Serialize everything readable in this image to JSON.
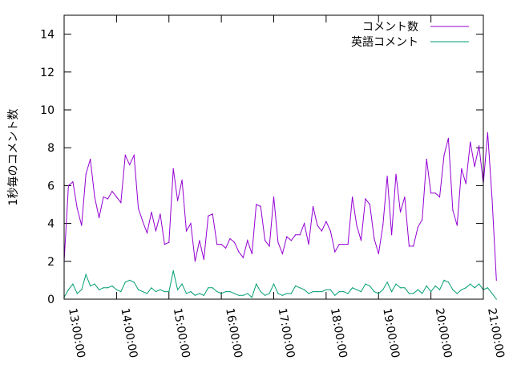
{
  "chart_data": {
    "type": "line",
    "title": "",
    "xlabel": "",
    "ylabel": "1秒毎のコメント数",
    "xlim": [
      "13:00:00",
      "21:00:00"
    ],
    "ylim": [
      0,
      15
    ],
    "x_ticks": [
      "13:00:00",
      "14:00:00",
      "15:00:00",
      "16:00:00",
      "17:00:00",
      "18:00:00",
      "19:00:00",
      "20:00:00",
      "21:00:00"
    ],
    "y_ticks": [
      0,
      2,
      4,
      6,
      8,
      10,
      12,
      14
    ],
    "x_sample_interval_minutes": 5,
    "grid": false,
    "legend_position": "top-right",
    "series": [
      {
        "name": "コメント数",
        "color": "#9400d3",
        "values": [
          2.0,
          6.0,
          6.2,
          4.8,
          3.9,
          6.6,
          7.4,
          5.4,
          4.3,
          5.4,
          5.3,
          5.7,
          5.4,
          5.1,
          7.6,
          7.1,
          7.6,
          4.8,
          4.1,
          3.5,
          4.6,
          3.6,
          4.5,
          2.9,
          3.0,
          6.9,
          5.2,
          6.3,
          3.6,
          4.0,
          2.0,
          3.1,
          2.1,
          4.4,
          4.5,
          2.9,
          2.9,
          2.7,
          3.2,
          3.0,
          2.5,
          2.2,
          3.1,
          2.4,
          5.0,
          4.9,
          3.1,
          2.8,
          5.4,
          3.0,
          2.4,
          3.3,
          3.1,
          3.4,
          3.4,
          4.0,
          2.9,
          4.9,
          3.9,
          3.6,
          4.1,
          3.6,
          2.5,
          2.9,
          2.9,
          2.9,
          5.4,
          3.9,
          3.1,
          5.3,
          5.0,
          3.2,
          2.4,
          3.9,
          6.5,
          3.4,
          6.6,
          4.6,
          5.4,
          2.8,
          2.8,
          3.8,
          4.2,
          7.4,
          5.6,
          5.6,
          5.4,
          7.6,
          8.5,
          4.7,
          3.9,
          6.9,
          6.1,
          8.3,
          7.0,
          8.1,
          6.1,
          8.8,
          5.3,
          1.0
        ]
      },
      {
        "name": "英語コメント",
        "color": "#009e73",
        "values": [
          0.1,
          0.5,
          0.8,
          0.3,
          0.5,
          1.3,
          0.7,
          0.8,
          0.5,
          0.6,
          0.6,
          0.7,
          0.5,
          0.4,
          0.9,
          1.0,
          0.9,
          0.5,
          0.4,
          0.3,
          0.6,
          0.4,
          0.5,
          0.4,
          0.4,
          1.5,
          0.5,
          0.8,
          0.3,
          0.4,
          0.2,
          0.3,
          0.2,
          0.6,
          0.6,
          0.4,
          0.3,
          0.4,
          0.4,
          0.3,
          0.2,
          0.2,
          0.3,
          0.1,
          0.8,
          0.4,
          0.2,
          0.3,
          0.8,
          0.3,
          0.2,
          0.3,
          0.3,
          0.7,
          0.6,
          0.5,
          0.3,
          0.4,
          0.4,
          0.4,
          0.5,
          0.5,
          0.2,
          0.4,
          0.4,
          0.3,
          0.6,
          0.5,
          0.4,
          0.8,
          0.7,
          0.4,
          0.3,
          0.5,
          0.9,
          0.4,
          0.8,
          0.6,
          0.6,
          0.3,
          0.3,
          0.5,
          0.3,
          0.7,
          0.4,
          0.7,
          0.5,
          1.0,
          0.9,
          0.5,
          0.3,
          0.5,
          0.6,
          0.8,
          0.6,
          0.8,
          0.5,
          0.6,
          0.3,
          0.0
        ]
      }
    ]
  }
}
